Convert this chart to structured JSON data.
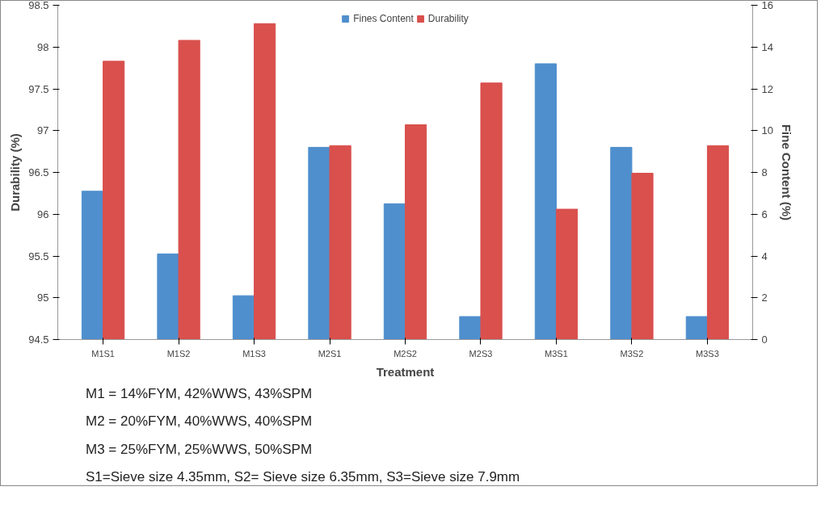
{
  "chart_data": {
    "type": "bar",
    "categories": [
      "M1S1",
      "M1S2",
      "M1S3",
      "M2S1",
      "M2S2",
      "M2S3",
      "M3S1",
      "M3S2",
      "M3S3"
    ],
    "series": [
      {
        "name": "Fines Content",
        "color": "#4f8fcd",
        "axis": "y2",
        "values": [
          7.1,
          4.1,
          2.1,
          9.2,
          6.5,
          1.1,
          13.2,
          9.2,
          1.1
        ]
      },
      {
        "name": "Durability",
        "color": "#d9504d",
        "values": [
          97.83,
          98.08,
          98.28,
          96.82,
          97.07,
          97.57,
          96.06,
          96.49,
          96.82
        ]
      }
    ],
    "xlabel": "Treatment",
    "ylabel": "Durability (%)",
    "y2label": "Fine Content (%)",
    "ylim": [
      94.5,
      98.5
    ],
    "yticks": [
      94.5,
      95,
      95.5,
      96,
      96.5,
      97,
      97.5,
      98,
      98.5
    ],
    "y2lim": [
      0,
      16
    ],
    "y2ticks": [
      0,
      2,
      4,
      6,
      8,
      10,
      12,
      14,
      16
    ],
    "legend": "top",
    "grid": false,
    "annotations": [
      "M1 = 14%FYM, 42%WWS, 43%SPM",
      "M2 = 20%FYM, 40%WWS, 40%SPM",
      "M3 = 25%FYM, 25%WWS, 50%SPM",
      "S1=Sieve size 4.35mm, S2= Sieve size 6.35mm, S3=Sieve size 7.9mm"
    ]
  }
}
